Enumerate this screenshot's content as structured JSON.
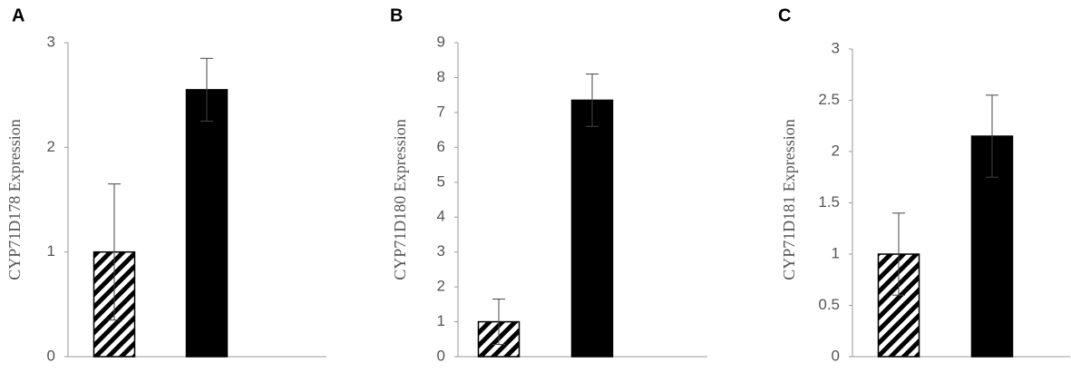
{
  "chart_data": [
    {
      "type": "bar",
      "panel": "A",
      "ylabel": "CYP71D178  Expression",
      "categories": [
        null,
        null
      ],
      "values": [
        1,
        2.55
      ],
      "errors": [
        0.65,
        0.3
      ],
      "patterns": [
        "hatch",
        "solid"
      ],
      "color": "#000000",
      "ylim": [
        0,
        3
      ],
      "yticks": [
        0,
        1,
        2,
        3
      ]
    },
    {
      "type": "bar",
      "panel": "B",
      "ylabel": "CYP71D180 Expression",
      "categories": [
        null,
        null
      ],
      "values": [
        1,
        7.35
      ],
      "errors": [
        0.65,
        0.75
      ],
      "patterns": [
        "hatch",
        "solid"
      ],
      "color": "#000000",
      "ylim": [
        0,
        9
      ],
      "yticks": [
        0,
        1,
        2,
        3,
        4,
        5,
        6,
        7,
        8,
        9
      ]
    },
    {
      "type": "bar",
      "panel": "C",
      "ylabel": "CYP71D181  Expression",
      "categories": [
        null,
        null
      ],
      "values": [
        1,
        2.15
      ],
      "errors": [
        0.4,
        0.4
      ],
      "patterns": [
        "hatch",
        "solid"
      ],
      "color": "#000000",
      "ylim": [
        0,
        3
      ],
      "yticks": [
        0,
        0.5,
        1,
        1.5,
        2,
        2.5,
        3
      ]
    }
  ]
}
